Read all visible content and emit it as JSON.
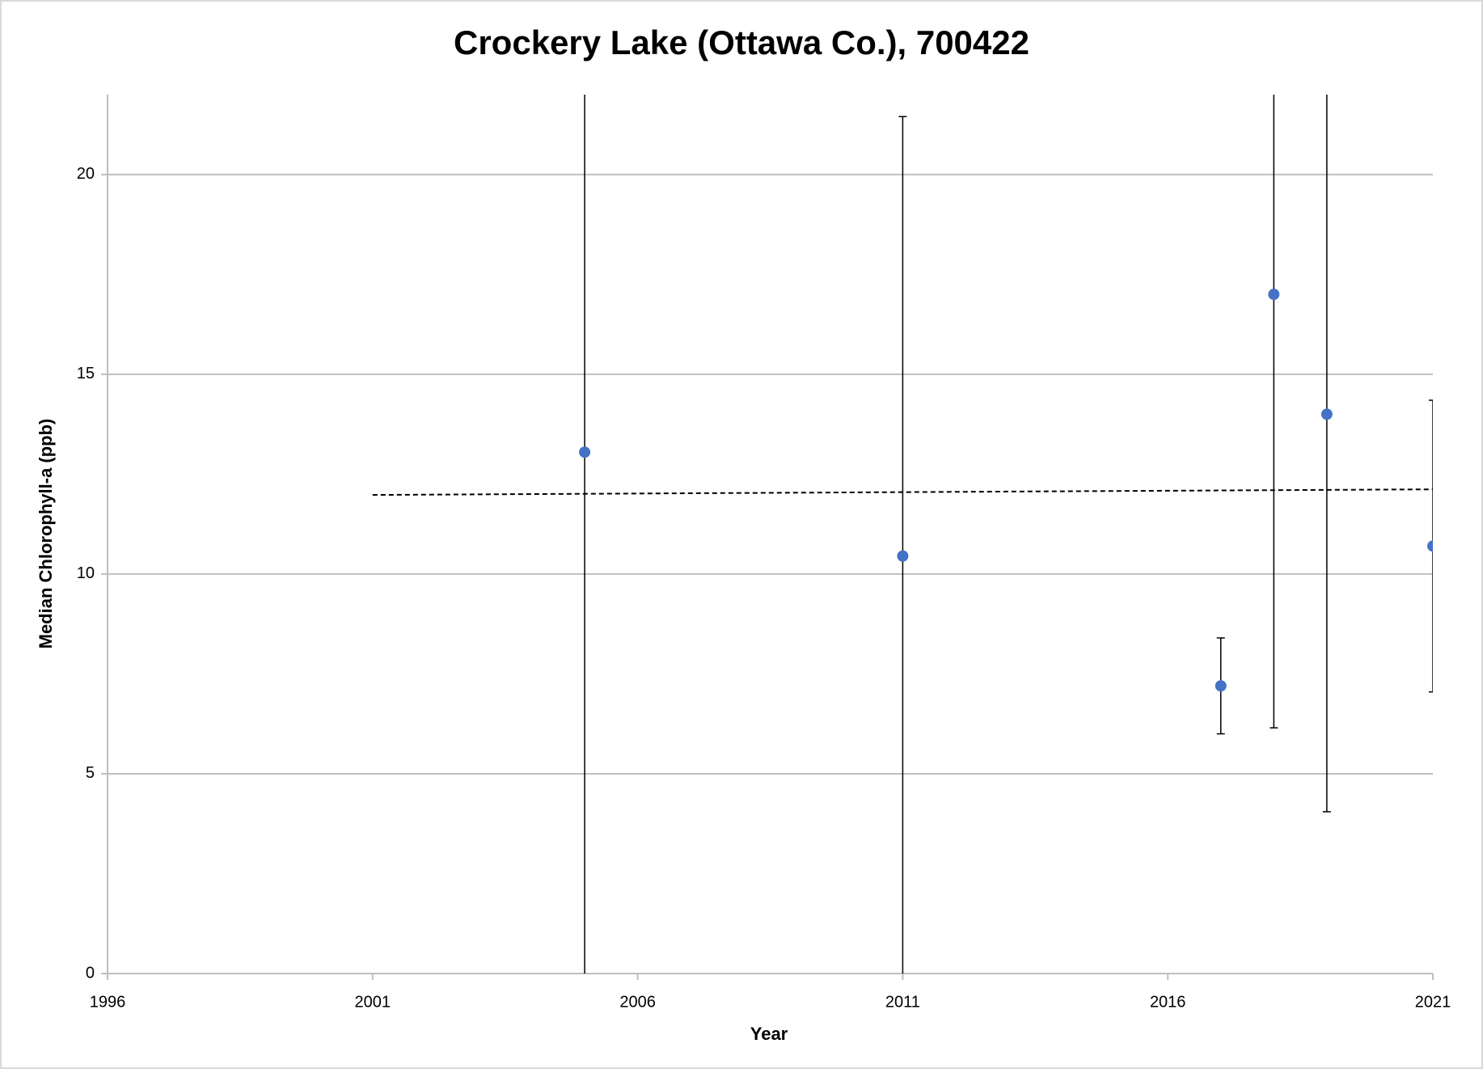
{
  "chart_data": {
    "type": "scatter",
    "title": "Crockery Lake (Ottawa Co.), 700422",
    "xlabel": "Year",
    "ylabel": "Median Chlorophyll-a (ppb)",
    "x": [
      2005,
      2011,
      2017,
      2018,
      2019,
      2021
    ],
    "series": [
      {
        "color": "#4472c4",
        "values": [
          13.05,
          10.45,
          7.2,
          17.0,
          14.0,
          10.7
        ],
        "errors": [
          14,
          11,
          1.2,
          10.85,
          9.95,
          3.65
        ]
      }
    ],
    "trendline": {
      "x": [
        2001,
        2021
      ],
      "values": [
        11.98,
        12.12
      ],
      "color": "#000000"
    },
    "xlim": [
      1996,
      2021
    ],
    "xticks": [
      1996,
      2001,
      2006,
      2011,
      2016,
      2021
    ],
    "ylim": [
      0,
      22
    ],
    "yticks": [
      0,
      5,
      10,
      15,
      20
    ],
    "grid": true
  }
}
